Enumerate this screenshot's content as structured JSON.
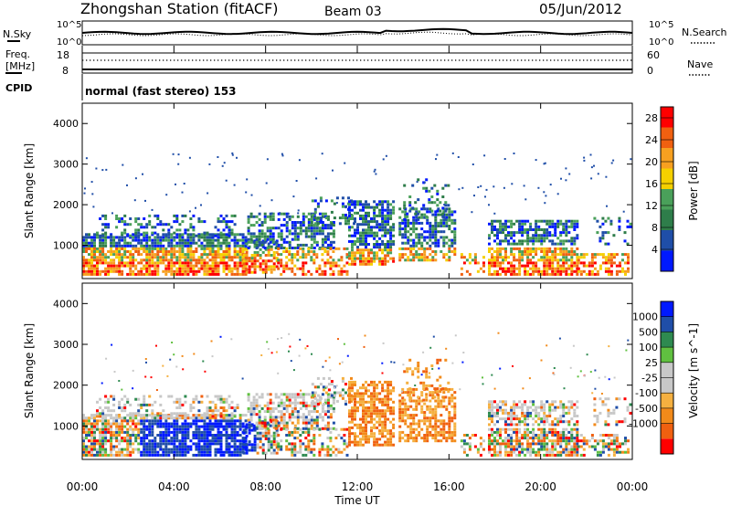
{
  "header": {
    "title": "Zhongshan Station (fitACF)",
    "beam": "Beam 03",
    "date": "05/Jun/2012"
  },
  "labels": {
    "nsky": "N.Sky",
    "nsearch": "N.Search",
    "freq_line1": "Freq.",
    "freq_line2": "[MHz]",
    "nave": "Nave",
    "cpid": "CPID",
    "cpid_value": "normal (fast stereo) 153"
  },
  "noise_panel": {
    "left_ticks": [
      "10^5",
      "10^0"
    ],
    "right_ticks": [
      "10^5",
      "10^0"
    ]
  },
  "freq_panel": {
    "left_ticks": [
      "18",
      "8"
    ],
    "right_ticks": [
      "60",
      "0"
    ]
  },
  "colors": {
    "power_scale": [
      "#0019ff",
      "#1f4ea8",
      "#2e7d4a",
      "#4aa05a",
      "#f5d000",
      "#f7a020",
      "#f06010",
      "#ff0000"
    ],
    "velocity_scale": [
      "#ff0000",
      "#f06010",
      "#f28a1a",
      "#f5b040",
      "#c8c8c8",
      "#c8c8c8",
      "#60c040",
      "#2e8a50",
      "#1f4ea8",
      "#0019ff"
    ]
  },
  "chart_data": [
    {
      "type": "heatmap",
      "title": "Power",
      "ylabel": "Slant Range [km]",
      "xlabel": "Time UT",
      "x_ticks": [
        "00:00",
        "04:00",
        "08:00",
        "12:00",
        "16:00",
        "20:00",
        "00:00"
      ],
      "y_ticks": [
        1000,
        2000,
        3000,
        4000
      ],
      "ylim": [
        180,
        4500
      ],
      "xlim_hours": [
        0,
        24
      ],
      "colorbar": {
        "label": "Power [dB]",
        "ticks": [
          4,
          8,
          12,
          16,
          20,
          24,
          28
        ],
        "range": [
          0,
          30
        ]
      }
    },
    {
      "type": "heatmap",
      "title": "Velocity",
      "ylabel": "Slant Range [km]",
      "xlabel": "Time UT",
      "x_ticks": [
        "00:00",
        "04:00",
        "08:00",
        "12:00",
        "16:00",
        "20:00",
        "00:00"
      ],
      "y_ticks": [
        1000,
        2000,
        3000,
        4000
      ],
      "ylim": [
        180,
        4500
      ],
      "xlim_hours": [
        0,
        24
      ],
      "colorbar": {
        "label": "Velocity [m s^-1]",
        "ticks": [
          "1000",
          "500",
          "100",
          "25",
          "-25",
          "-100",
          "-500",
          "-1000"
        ]
      }
    }
  ]
}
